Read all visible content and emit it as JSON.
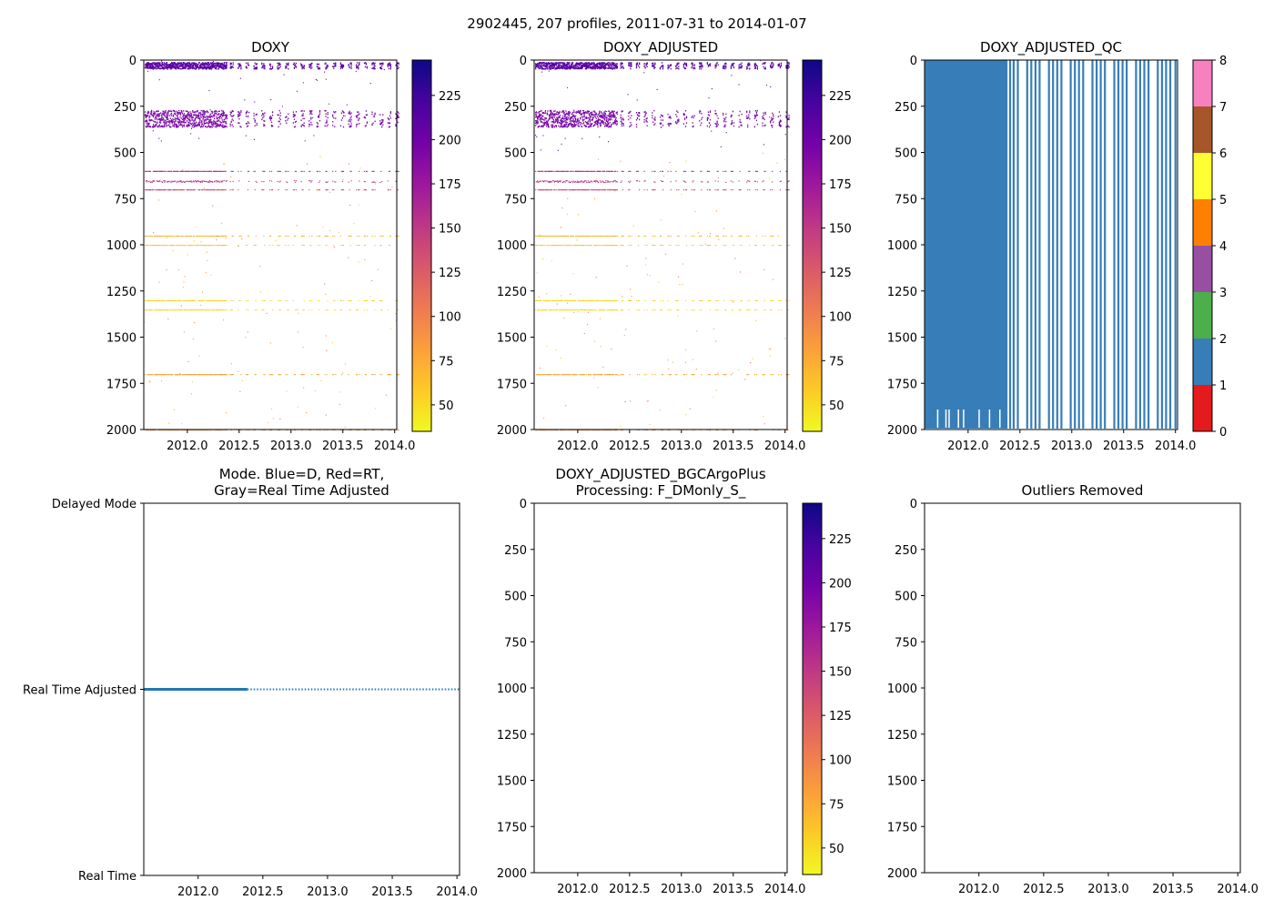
{
  "figure": {
    "suptitle": "2902445, 207 profiles, 2011-07-31 to 2014-01-07"
  },
  "colormaps": {
    "plasma_r": [
      "#f0f921",
      "#fdca26",
      "#fb9f3a",
      "#ed7953",
      "#d8576b",
      "#bd3786",
      "#9c179e",
      "#7201a8",
      "#46039f",
      "#0d0887"
    ],
    "qc_colors": [
      "#e41a1c",
      "#377eb8",
      "#4daf4a",
      "#984ea3",
      "#ff7f00",
      "#ffff33",
      "#a65628",
      "#f781bf",
      "#999999"
    ],
    "mode_line_color": "#1f77b4"
  },
  "chart_data": [
    {
      "id": "doxy",
      "type": "scatter",
      "title": "DOXY",
      "xlim": [
        2011.58,
        2014.02
      ],
      "ylim": [
        2000,
        0
      ],
      "xticks": [
        "2012.0",
        "2012.5",
        "2013.0",
        "2013.5",
        "2014.0"
      ],
      "yticks": [
        "0",
        "250",
        "500",
        "750",
        "1000",
        "1250",
        "1500",
        "1750",
        "2000"
      ],
      "colorbar": {
        "range": [
          35,
          245
        ],
        "ticks": [
          "50",
          "75",
          "100",
          "125",
          "150",
          "175",
          "200",
          "225"
        ]
      },
      "dense_period": [
        2011.58,
        2012.38
      ],
      "profile_count": 207,
      "sample_bands": [
        {
          "depth": [
            10,
            45
          ],
          "value": 210
        },
        {
          "depth": [
            270,
            360
          ],
          "value": 195
        },
        {
          "depth": [
            600,
            600
          ],
          "value": 160
        },
        {
          "depth": [
            650,
            660
          ],
          "value": 150
        },
        {
          "depth": [
            700,
            700
          ],
          "value": 140
        },
        {
          "depth": [
            950,
            950
          ],
          "value": 70
        },
        {
          "depth": [
            1000,
            1000
          ],
          "value": 60
        },
        {
          "depth": [
            1300,
            1300
          ],
          "value": 55
        },
        {
          "depth": [
            1350,
            1350
          ],
          "value": 50
        },
        {
          "depth": [
            1700,
            1700
          ],
          "value": 80
        },
        {
          "depth": [
            2000,
            2000
          ],
          "value": 90
        }
      ]
    },
    {
      "id": "doxy_adjusted",
      "type": "scatter",
      "title": "DOXY_ADJUSTED",
      "xlim": [
        2011.58,
        2014.02
      ],
      "ylim": [
        2000,
        0
      ],
      "xticks": [
        "2012.0",
        "2012.5",
        "2013.0",
        "2013.5",
        "2014.0"
      ],
      "yticks": [
        "0",
        "250",
        "500",
        "750",
        "1000",
        "1250",
        "1500",
        "1750",
        "2000"
      ],
      "colorbar": {
        "range": [
          35,
          245
        ],
        "ticks": [
          "50",
          "75",
          "100",
          "125",
          "150",
          "175",
          "200",
          "225"
        ]
      },
      "dense_period": [
        2011.58,
        2012.38
      ],
      "profile_count": 207,
      "sample_bands": [
        {
          "depth": [
            10,
            45
          ],
          "value": 210
        },
        {
          "depth": [
            270,
            360
          ],
          "value": 195
        },
        {
          "depth": [
            600,
            600
          ],
          "value": 160
        },
        {
          "depth": [
            650,
            660
          ],
          "value": 150
        },
        {
          "depth": [
            700,
            700
          ],
          "value": 140
        },
        {
          "depth": [
            950,
            950
          ],
          "value": 70
        },
        {
          "depth": [
            1000,
            1000
          ],
          "value": 60
        },
        {
          "depth": [
            1300,
            1300
          ],
          "value": 55
        },
        {
          "depth": [
            1350,
            1350
          ],
          "value": 50
        },
        {
          "depth": [
            1700,
            1700
          ],
          "value": 80
        },
        {
          "depth": [
            2000,
            2000
          ],
          "value": 90
        }
      ]
    },
    {
      "id": "doxy_adjusted_qc",
      "type": "heatmap",
      "title": "DOXY_ADJUSTED_QC",
      "xlim": [
        2011.58,
        2014.02
      ],
      "ylim": [
        2000,
        0
      ],
      "xticks": [
        "2012.0",
        "2012.5",
        "2013.0",
        "2013.5",
        "2014.0"
      ],
      "yticks": [
        "0",
        "250",
        "500",
        "750",
        "1000",
        "1250",
        "1500",
        "1750",
        "2000"
      ],
      "colorbar": {
        "range": [
          0,
          8
        ],
        "ticks": [
          "0",
          "1",
          "2",
          "3",
          "4",
          "5",
          "6",
          "7",
          "8"
        ]
      },
      "qc_value": 1,
      "solid_block": [
        2011.58,
        2012.38
      ],
      "stripe_times": [
        2012.395,
        2012.43,
        2012.47,
        2012.56,
        2012.6,
        2012.64,
        2012.68,
        2012.77,
        2012.81,
        2012.85,
        2012.89,
        2012.98,
        2013.02,
        2013.06,
        2013.1,
        2013.19,
        2013.23,
        2013.27,
        2013.31,
        2013.4,
        2013.44,
        2013.48,
        2013.52,
        2013.61,
        2013.65,
        2013.69,
        2013.73,
        2013.82,
        2013.86,
        2013.9,
        2013.94,
        2013.99
      ]
    },
    {
      "id": "mode",
      "type": "line",
      "title": "Mode. Blue=D, Red=RT,\nGray=Real Time Adjusted",
      "xlim": [
        2011.58,
        2014.02
      ],
      "ylim": [
        0,
        2
      ],
      "xticks": [
        "2012.0",
        "2012.5",
        "2013.0",
        "2013.5",
        "2014.0"
      ],
      "yticks": [
        "Delayed Mode",
        "Real Time Adjusted",
        "Real Time"
      ],
      "solid_segment": [
        2011.58,
        2012.38
      ],
      "dotted_segment": [
        2012.38,
        2014.02
      ],
      "level": 1
    },
    {
      "id": "bgcargoplus",
      "type": "scatter",
      "title": "DOXY_ADJUSTED_BGCArgoPlus\nProcessing: F_DMonly_S_",
      "xlim": [
        2011.58,
        2014.02
      ],
      "ylim": [
        2000,
        0
      ],
      "xticks": [
        "2012.0",
        "2012.5",
        "2013.0",
        "2013.5",
        "2014.0"
      ],
      "yticks": [
        "0",
        "250",
        "500",
        "750",
        "1000",
        "1250",
        "1500",
        "1750",
        "2000"
      ],
      "colorbar": {
        "range": [
          35,
          245
        ],
        "ticks": [
          "50",
          "75",
          "100",
          "125",
          "150",
          "175",
          "200",
          "225"
        ]
      },
      "points": []
    },
    {
      "id": "outliers",
      "type": "scatter",
      "title": "Outliers Removed",
      "xlim": [
        2011.58,
        2014.02
      ],
      "ylim": [
        2000,
        0
      ],
      "xticks": [
        "2012.0",
        "2012.5",
        "2013.0",
        "2013.5",
        "2014.0"
      ],
      "yticks": [
        "0",
        "250",
        "500",
        "750",
        "1000",
        "1250",
        "1500",
        "1750",
        "2000"
      ],
      "points": []
    }
  ]
}
